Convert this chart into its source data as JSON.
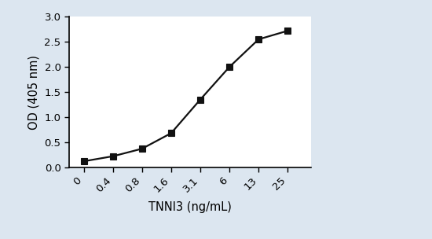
{
  "x_labels": [
    "0",
    "0.4",
    "0.8",
    "1.6",
    "3.1",
    "6",
    "13",
    "25"
  ],
  "x_positions": [
    0,
    1,
    2,
    3,
    4,
    5,
    6,
    7
  ],
  "y_values": [
    0.12,
    0.22,
    0.37,
    0.68,
    1.35,
    2.0,
    2.55,
    2.72
  ],
  "xlabel": "TNNI3 (ng/mL)",
  "ylabel": "OD (405 nm)",
  "ylim": [
    0.0,
    3.0
  ],
  "yticks": [
    0.0,
    0.5,
    1.0,
    1.5,
    2.0,
    2.5,
    3.0
  ],
  "line_color": "#111111",
  "marker": "s",
  "marker_size": 6,
  "marker_color": "#111111",
  "background_color": "#dce6f0",
  "plot_bg_color": "#ffffff",
  "xlabel_fontsize": 10.5,
  "ylabel_fontsize": 10.5,
  "tick_fontsize": 9.5
}
